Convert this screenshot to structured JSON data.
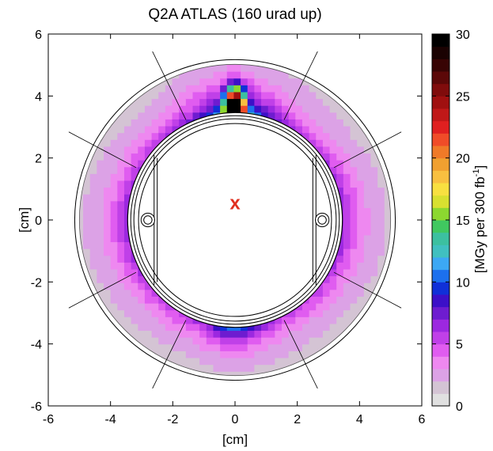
{
  "chart_data": {
    "type": "heatmap",
    "title": "Q2A ATLAS (160 urad up)",
    "xlabel": "[cm]",
    "ylabel": "[cm]",
    "xlim": [
      -6,
      6
    ],
    "ylim": [
      -6,
      6
    ],
    "xticks": [
      "-6",
      "-4",
      "-2",
      "0",
      "2",
      "4",
      "6"
    ],
    "yticks": [
      "-6",
      "-4",
      "-2",
      "0",
      "2",
      "4",
      "6"
    ],
    "grid": false,
    "colorbar": {
      "label": "[MGy per 300 fb",
      "label_sup": "-1",
      "label_close": "]",
      "range": [
        0,
        30
      ],
      "ticks": [
        "0",
        "5",
        "10",
        "15",
        "20",
        "25",
        "30"
      ],
      "colors": [
        "#ffffff",
        "#e0e0e0",
        "#d4c4d4",
        "#dca2e6",
        "#ee88f0",
        "#e05cf0",
        "#c040e8",
        "#9c28e0",
        "#6e1cd0",
        "#3c10c8",
        "#1030d8",
        "#1c70ee",
        "#3ca8f4",
        "#40c0c0",
        "#3cc0a0",
        "#40c860",
        "#8cd830",
        "#d8e030",
        "#f8e040",
        "#f8c040",
        "#f0a030",
        "#f07a28",
        "#f04c28",
        "#e02020",
        "#c01818",
        "#a01010",
        "#800c0c",
        "#5c0808",
        "#380404",
        "#1a0202",
        "#000000"
      ]
    },
    "marker": {
      "x": 0.0,
      "y": 0.55,
      "symbol": "x",
      "color": "#e03020"
    },
    "geometry": {
      "dose_ring_inner_radius": 3.45,
      "dose_ring_outer_radius": 5.0,
      "outer_shell_radius": 5.15,
      "beam_pipe_radii": [
        3.1,
        3.25,
        3.35
      ],
      "cooling_hole_positions": [
        [
          -2.8,
          0.0
        ],
        [
          2.8,
          0.0
        ]
      ],
      "cooling_hole_radius": 0.22,
      "support_line_angles_deg": [
        28,
        64,
        116,
        152
      ]
    },
    "dose_map_description_values": {
      "peak_dose": 30,
      "peak_location": [
        0.0,
        3.65
      ]
    }
  }
}
